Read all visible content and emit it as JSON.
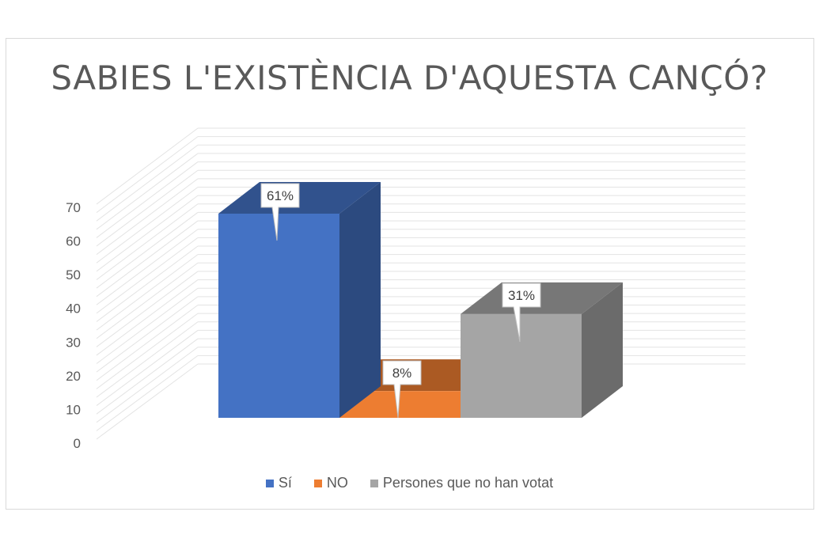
{
  "chart_data": {
    "type": "bar",
    "title": "SABIES L'EXISTÈNCIA D'AQUESTA CANÇÓ?",
    "categories": [
      "Sí",
      "NO",
      "Persones que no han votat"
    ],
    "values": [
      61,
      8,
      31
    ],
    "data_labels": [
      "61%",
      "8%",
      "31%"
    ],
    "ylim": [
      0,
      70
    ],
    "yticks": [
      0,
      10,
      20,
      30,
      40,
      50,
      60,
      70
    ],
    "xlabel": "",
    "ylabel": "",
    "legend_position": "bottom",
    "colors": [
      "#4472c4",
      "#ed7d31",
      "#a5a5a5"
    ]
  }
}
